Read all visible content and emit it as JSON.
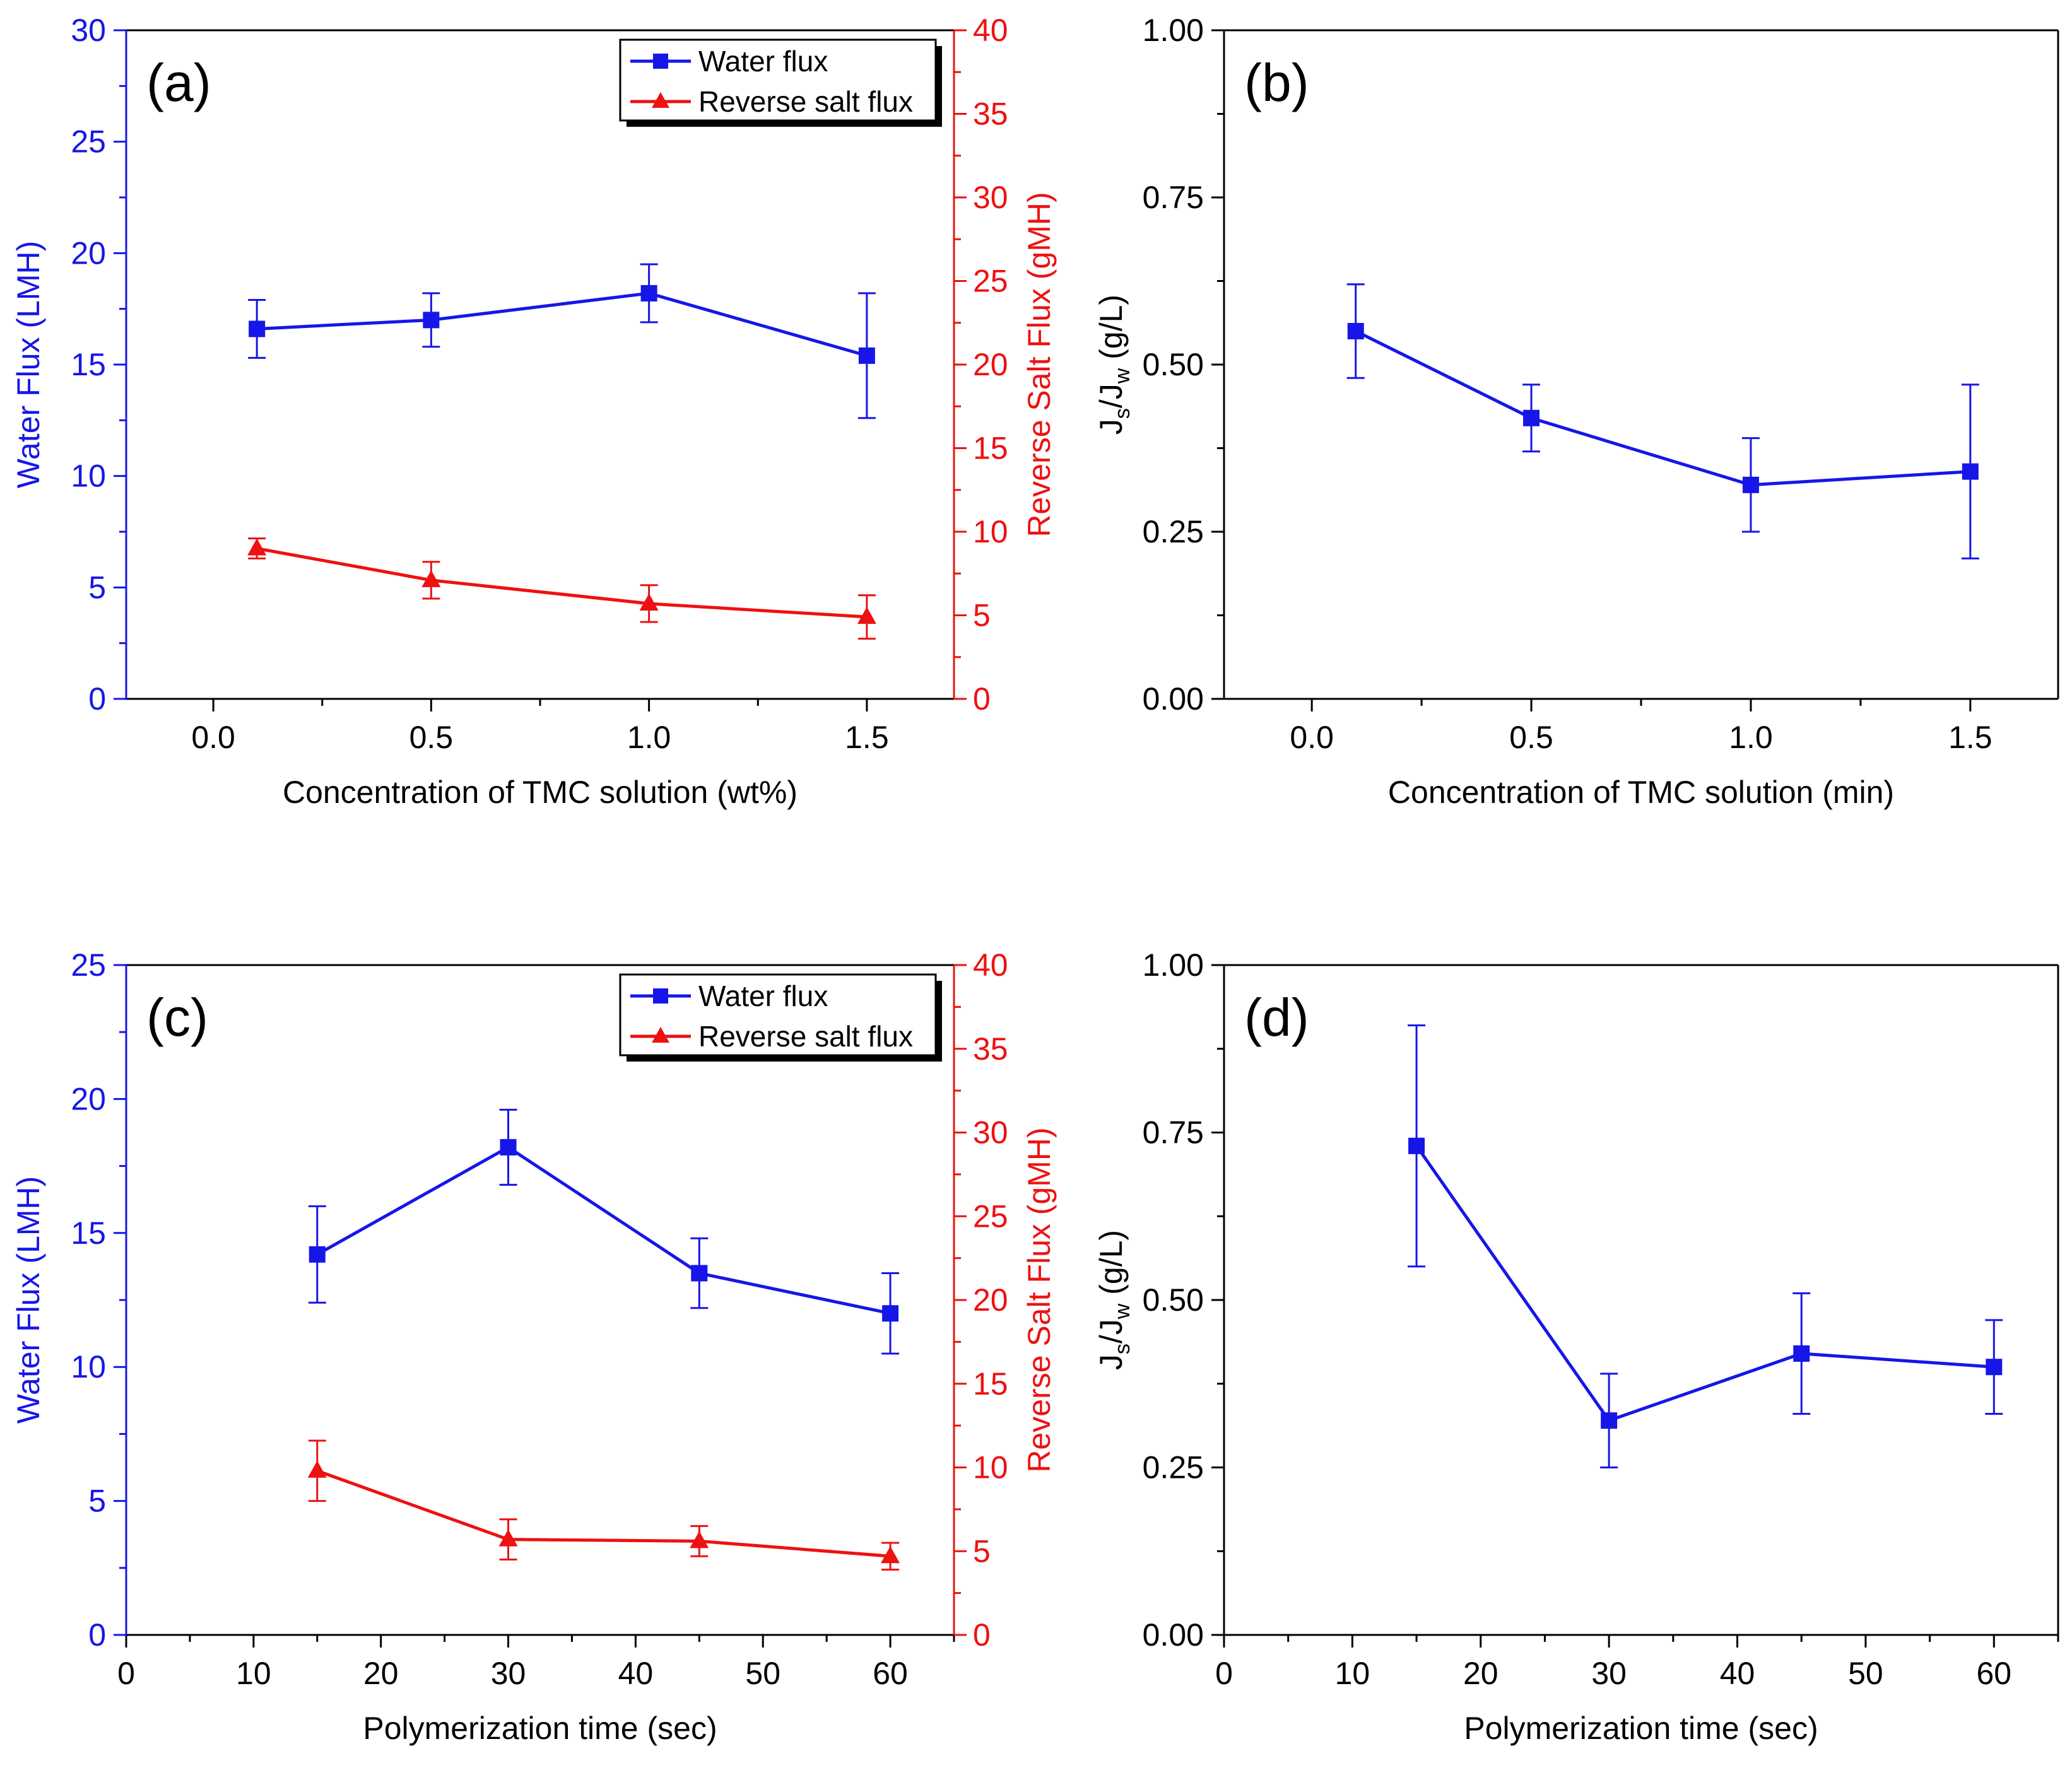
{
  "figure": {
    "colors": {
      "water": "#1616e8",
      "salt": "#ee1111",
      "axis": "#000000"
    }
  },
  "chart_data": [
    {
      "panel": "(a)",
      "type": "line",
      "x": [
        0.1,
        0.5,
        1.0,
        1.5
      ],
      "xlim": [
        -0.2,
        1.7
      ],
      "xticks": [
        0.0,
        0.5,
        1.0,
        1.5
      ],
      "xtick_labels": [
        "0.0",
        "0.5",
        "1.0",
        "1.5"
      ],
      "xlabel": "Concentration of TMC solution (wt%)",
      "ylabel": "Water Flux (LMH)",
      "ylim": [
        0,
        30
      ],
      "yticks": [
        0,
        5,
        10,
        15,
        20,
        25,
        30
      ],
      "ytick_labels": [
        "0",
        "5",
        "10",
        "15",
        "20",
        "25",
        "30"
      ],
      "y2label": "Reverse Salt Flux (gMH)",
      "y2lim": [
        0,
        40
      ],
      "y2ticks": [
        0,
        5,
        10,
        15,
        20,
        25,
        30,
        35,
        40
      ],
      "y2tick_labels": [
        "0",
        "5",
        "10",
        "15",
        "20",
        "25",
        "30",
        "35",
        "40"
      ],
      "legend": [
        "Water flux",
        "Reverse salt flux"
      ],
      "series": [
        {
          "name": "Water flux",
          "axis": "left",
          "marker": "square",
          "values": [
            16.6,
            17.0,
            18.2,
            15.4
          ],
          "errors": [
            1.3,
            1.2,
            1.3,
            2.8
          ]
        },
        {
          "name": "Reverse salt flux",
          "axis": "right",
          "marker": "triangle",
          "values": [
            9.0,
            7.1,
            5.7,
            4.9
          ],
          "errors": [
            0.6,
            1.1,
            1.1,
            1.3
          ]
        }
      ]
    },
    {
      "panel": "(b)",
      "type": "line",
      "x": [
        0.1,
        0.5,
        1.0,
        1.5
      ],
      "xlim": [
        -0.2,
        1.7
      ],
      "xticks": [
        0.0,
        0.5,
        1.0,
        1.5
      ],
      "xtick_labels": [
        "0.0",
        "0.5",
        "1.0",
        "1.5"
      ],
      "xlabel": "Concentration of TMC solution (min)",
      "ylabel_main": "J",
      "ylabel_sub1": "s",
      "ylabel_mid": "/J",
      "ylabel_sub2": "w",
      "ylabel_end": " (g/L)",
      "ylim": [
        0,
        1
      ],
      "yticks": [
        0,
        0.25,
        0.5,
        0.75,
        1.0
      ],
      "ytick_labels": [
        "0.00",
        "0.25",
        "0.50",
        "0.75",
        "1.00"
      ],
      "series": [
        {
          "name": "Js/Jw",
          "axis": "left",
          "marker": "square",
          "values": [
            0.55,
            0.42,
            0.32,
            0.34
          ],
          "errors": [
            0.07,
            0.05,
            0.07,
            0.13
          ]
        }
      ]
    },
    {
      "panel": "(c)",
      "type": "line",
      "x": [
        15,
        30,
        45,
        60
      ],
      "xlim": [
        0,
        65
      ],
      "xticks": [
        0,
        10,
        20,
        30,
        40,
        50,
        60
      ],
      "xtick_labels": [
        "0",
        "10",
        "20",
        "30",
        "40",
        "50",
        "60"
      ],
      "xlabel": "Polymerization time (sec)",
      "ylabel": "Water Flux (LMH)",
      "ylim": [
        0,
        25
      ],
      "yticks": [
        0,
        5,
        10,
        15,
        20,
        25
      ],
      "ytick_labels": [
        "0",
        "5",
        "10",
        "15",
        "20",
        "25"
      ],
      "y2label": "Reverse Salt Flux (gMH)",
      "y2lim": [
        0,
        40
      ],
      "y2ticks": [
        0,
        5,
        10,
        15,
        20,
        25,
        30,
        35,
        40
      ],
      "y2tick_labels": [
        "0",
        "5",
        "10",
        "15",
        "20",
        "25",
        "30",
        "35",
        "40"
      ],
      "legend": [
        "Water flux",
        "Reverse salt flux"
      ],
      "series": [
        {
          "name": "Water flux",
          "axis": "left",
          "marker": "square",
          "values": [
            14.2,
            18.2,
            13.5,
            12.0
          ],
          "errors": [
            1.8,
            1.4,
            1.3,
            1.5
          ]
        },
        {
          "name": "Reverse salt flux",
          "axis": "right",
          "marker": "triangle",
          "values": [
            9.8,
            5.7,
            5.6,
            4.7
          ],
          "errors": [
            1.8,
            1.2,
            0.9,
            0.8
          ]
        }
      ]
    },
    {
      "panel": "(d)",
      "type": "line",
      "x": [
        15,
        30,
        45,
        60
      ],
      "xlim": [
        0,
        65
      ],
      "xticks": [
        0,
        10,
        20,
        30,
        40,
        50,
        60
      ],
      "xtick_labels": [
        "0",
        "10",
        "20",
        "30",
        "40",
        "50",
        "60"
      ],
      "xlabel": "Polymerization time (sec)",
      "ylabel_main": "J",
      "ylabel_sub1": "s",
      "ylabel_mid": "/J",
      "ylabel_sub2": "w",
      "ylabel_end": " (g/L)",
      "ylim": [
        0,
        1
      ],
      "yticks": [
        0,
        0.25,
        0.5,
        0.75,
        1.0
      ],
      "ytick_labels": [
        "0.00",
        "0.25",
        "0.50",
        "0.75",
        "1.00"
      ],
      "series": [
        {
          "name": "Js/Jw",
          "axis": "left",
          "marker": "square",
          "values": [
            0.73,
            0.32,
            0.42,
            0.4
          ],
          "errors": [
            0.18,
            0.07,
            0.09,
            0.07
          ]
        }
      ]
    }
  ]
}
